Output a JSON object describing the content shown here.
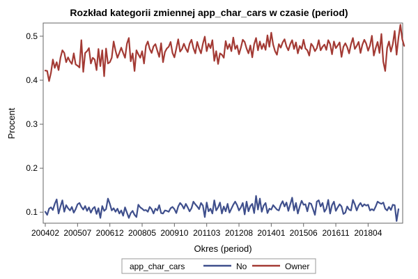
{
  "chart_data": {
    "type": "line",
    "title": "Rozkład kategorii zmiennej app_char_cars w czasie (period)",
    "xlabel": "Okres (period)",
    "ylabel": "Procent",
    "ylim": [
      0.075,
      0.53
    ],
    "yticks": [
      "0.1",
      "0.2",
      "0.3",
      "0.4",
      "0.5"
    ],
    "ytick_values": [
      0.1,
      0.2,
      0.3,
      0.4,
      0.5
    ],
    "xlim": [
      "200402",
      "201804"
    ],
    "xticks": [
      "200402",
      "200507",
      "200612",
      "200805",
      "200910",
      "201103",
      "201208",
      "201401",
      "201506",
      "201611",
      "201804"
    ],
    "grid": false,
    "legend": {
      "title": "app_char_cars",
      "placement": "bottom",
      "entries": [
        "No",
        "Owner"
      ]
    },
    "series": [
      {
        "name": "No",
        "color": "#3f4f8c",
        "values": [
          0.101,
          0.094,
          0.108,
          0.111,
          0.105,
          0.119,
          0.129,
          0.097,
          0.113,
          0.127,
          0.101,
          0.116,
          0.109,
          0.104,
          0.112,
          0.099,
          0.107,
          0.118,
          0.121,
          0.112,
          0.106,
          0.114,
          0.103,
          0.111,
          0.099,
          0.108,
          0.112,
          0.096,
          0.109,
          0.087,
          0.114,
          0.103,
          0.107,
          0.131,
          0.119,
          0.104,
          0.109,
          0.101,
          0.108,
          0.097,
          0.104,
          0.092,
          0.111,
          0.099,
          0.087,
          0.098,
          0.103,
          0.094,
          0.089,
          0.117,
          0.111,
          0.108,
          0.104,
          0.105,
          0.101,
          0.112,
          0.107,
          0.097,
          0.108,
          0.104,
          0.116,
          0.098,
          0.097,
          0.104,
          0.103,
          0.101,
          0.109,
          0.112,
          0.107,
          0.098,
          0.113,
          0.121,
          0.116,
          0.108,
          0.119,
          0.111,
          0.102,
          0.109,
          0.124,
          0.118,
          0.113,
          0.107,
          0.121,
          0.115,
          0.089,
          0.122,
          0.102,
          0.108,
          0.097,
          0.127,
          0.104,
          0.111,
          0.122,
          0.097,
          0.113,
          0.102,
          0.119,
          0.099,
          0.108,
          0.117,
          0.124,
          0.116,
          0.104,
          0.111,
          0.121,
          0.095,
          0.124,
          0.102,
          0.114,
          0.119,
          0.098,
          0.137,
          0.106,
          0.131,
          0.101,
          0.115,
          0.121,
          0.098,
          0.108,
          0.106,
          0.116,
          0.111,
          0.106,
          0.104,
          0.117,
          0.125,
          0.113,
          0.122,
          0.103,
          0.118,
          0.133,
          0.104,
          0.121,
          0.097,
          0.113,
          0.126,
          0.117,
          0.118,
          0.102,
          0.121,
          0.119,
          0.107,
          0.094,
          0.124,
          0.127,
          0.113,
          0.121,
          0.101,
          0.108,
          0.128,
          0.097,
          0.116,
          0.124,
          0.103,
          0.111,
          0.118,
          0.113,
          0.096,
          0.099,
          0.113,
          0.106,
          0.104,
          0.128,
          0.118,
          0.104,
          0.115,
          0.121,
          0.113,
          0.118,
          0.115,
          0.117,
          0.104,
          0.107,
          0.104,
          0.113,
          0.124,
          0.121,
          0.119,
          0.122,
          0.108,
          0.104,
          0.112,
          0.105,
          0.117,
          0.116,
          0.08,
          0.107
        ]
      },
      {
        "name": "Owner",
        "color": "#a33a34",
        "values": [
          0.422,
          0.421,
          0.398,
          0.417,
          0.447,
          0.428,
          0.441,
          0.423,
          0.451,
          0.468,
          0.462,
          0.441,
          0.452,
          0.443,
          0.437,
          0.461,
          0.436,
          0.433,
          0.429,
          0.491,
          0.419,
          0.462,
          0.466,
          0.473,
          0.438,
          0.451,
          0.447,
          0.423,
          0.471,
          0.432,
          0.468,
          0.409,
          0.472,
          0.438,
          0.441,
          0.451,
          0.488,
          0.467,
          0.451,
          0.462,
          0.474,
          0.462,
          0.451,
          0.483,
          0.496,
          0.443,
          0.461,
          0.421,
          0.468,
          0.459,
          0.451,
          0.466,
          0.438,
          0.478,
          0.488,
          0.471,
          0.462,
          0.477,
          0.482,
          0.467,
          0.453,
          0.484,
          0.441,
          0.464,
          0.472,
          0.476,
          0.487,
          0.462,
          0.452,
          0.472,
          0.493,
          0.465,
          0.471,
          0.483,
          0.472,
          0.464,
          0.483,
          0.492,
          0.473,
          0.461,
          0.487,
          0.472,
          0.461,
          0.483,
          0.499,
          0.466,
          0.483,
          0.473,
          0.491,
          0.444,
          0.466,
          0.437,
          0.461,
          0.458,
          0.451,
          0.489,
          0.471,
          0.482,
          0.466,
          0.497,
          0.471,
          0.479,
          0.459,
          0.474,
          0.492,
          0.487,
          0.472,
          0.461,
          0.479,
          0.452,
          0.482,
          0.496,
          0.468,
          0.488,
          0.471,
          0.483,
          0.469,
          0.502,
          0.476,
          0.508,
          0.481,
          0.466,
          0.458,
          0.482,
          0.474,
          0.486,
          0.493,
          0.477,
          0.468,
          0.482,
          0.491,
          0.471,
          0.486,
          0.461,
          0.478,
          0.471,
          0.492,
          0.472,
          0.468,
          0.456,
          0.483,
          0.477,
          0.466,
          0.473,
          0.491,
          0.468,
          0.476,
          0.481,
          0.469,
          0.491,
          0.482,
          0.459,
          0.488,
          0.473,
          0.479,
          0.486,
          0.453,
          0.476,
          0.484,
          0.475,
          0.461,
          0.482,
          0.496,
          0.471,
          0.478,
          0.487,
          0.462,
          0.481,
          0.492,
          0.483,
          0.467,
          0.479,
          0.501,
          0.456,
          0.473,
          0.487,
          0.462,
          0.505,
          0.442,
          0.421,
          0.473,
          0.488,
          0.465,
          0.482,
          0.512,
          0.458,
          0.497,
          0.526,
          0.493,
          0.478
        ]
      }
    ]
  }
}
